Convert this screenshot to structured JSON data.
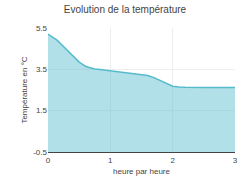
{
  "chart_data": {
    "type": "area",
    "title": "Evolution de la température",
    "xlabel": "heure par heure",
    "ylabel": "Température en °C",
    "color": "#55bbcc",
    "xlim": [
      0,
      3
    ],
    "ylim": [
      -0.5,
      5.5
    ],
    "xticks": [
      0,
      1,
      2,
      3
    ],
    "yticks": [
      -0.5,
      1.5,
      3.5,
      5.5
    ],
    "grid": true,
    "x": [
      0.0,
      0.05,
      0.1,
      0.15,
      0.2,
      0.25,
      0.3,
      0.35,
      0.4,
      0.45,
      0.5,
      0.55,
      0.6,
      0.65,
      0.7,
      0.75,
      0.8,
      0.85,
      0.9,
      0.95,
      1.0,
      1.05,
      1.1,
      1.2,
      1.3,
      1.4,
      1.5,
      1.6,
      1.7,
      1.8,
      1.9,
      2.0,
      2.1,
      2.2,
      2.5,
      2.8,
      3.0
    ],
    "values": [
      5.2,
      5.1,
      5.0,
      4.9,
      4.75,
      4.6,
      4.45,
      4.3,
      4.15,
      4.0,
      3.85,
      3.75,
      3.65,
      3.6,
      3.55,
      3.52,
      3.5,
      3.48,
      3.46,
      3.44,
      3.42,
      3.4,
      3.38,
      3.35,
      3.32,
      3.28,
      3.25,
      3.2,
      3.1,
      2.95,
      2.8,
      2.68,
      2.65,
      2.63,
      2.62,
      2.62,
      2.62
    ]
  }
}
